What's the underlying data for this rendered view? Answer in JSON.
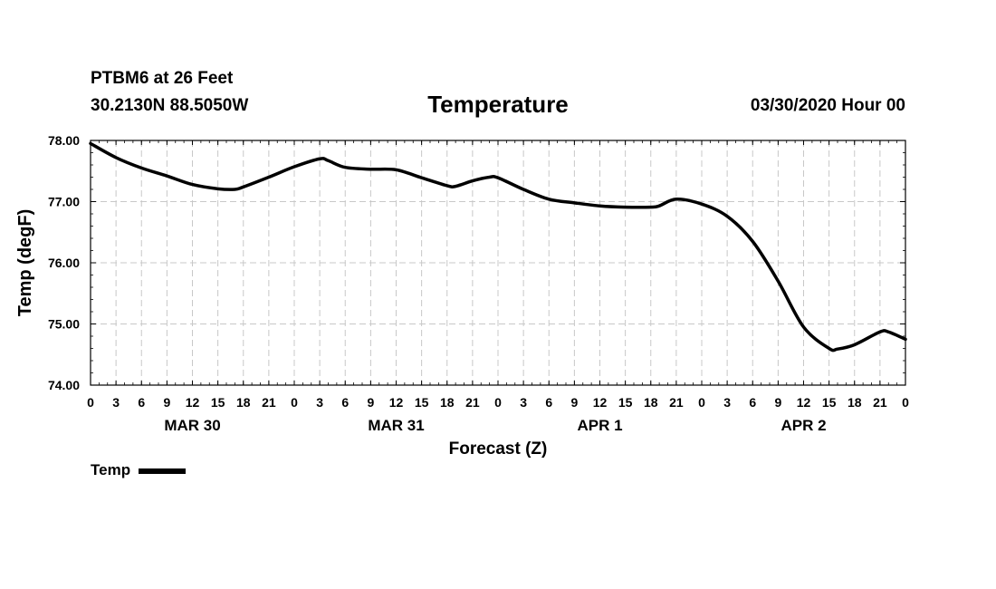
{
  "header": {
    "station": "PTBM6 at 26 Feet",
    "coordinates": "30.2130N 88.5050W",
    "title": "Temperature",
    "run_time": "03/30/2020 Hour 00"
  },
  "chart_data": {
    "type": "line",
    "title": "Temperature",
    "xlabel": "Forecast (Z)",
    "ylabel": "Temp (degF)",
    "ylim": [
      74,
      78
    ],
    "xlim": [
      0,
      96
    ],
    "x_unit": "forecast hours from 03/30/2020 00Z",
    "grid": true,
    "y_ticks": [
      "74.00",
      "75.00",
      "76.00",
      "77.00",
      "78.00"
    ],
    "y_tick_values": [
      74,
      75,
      76,
      77,
      78
    ],
    "x_tick_labels": [
      "0",
      "3",
      "6",
      "9",
      "12",
      "15",
      "18",
      "21",
      "0",
      "3",
      "6",
      "9",
      "12",
      "15",
      "18",
      "21",
      "0",
      "3",
      "6",
      "9",
      "12",
      "15",
      "18",
      "21",
      "0",
      "3",
      "6",
      "9",
      "12",
      "15",
      "18",
      "21",
      "0"
    ],
    "day_labels": [
      {
        "label": "MAR 30",
        "center_hour": 12
      },
      {
        "label": "MAR 31",
        "center_hour": 36
      },
      {
        "label": "APR 1",
        "center_hour": 60
      },
      {
        "label": "APR 2",
        "center_hour": 84
      }
    ],
    "series": [
      {
        "name": "Temp",
        "color": "#000000",
        "x": [
          0,
          3,
          6,
          9,
          12,
          15,
          17,
          18,
          21,
          24,
          27,
          28,
          30,
          33,
          36,
          39,
          42,
          43,
          45,
          47,
          48,
          51,
          54,
          57,
          60,
          63,
          66,
          67,
          69,
          72,
          75,
          78,
          81,
          84,
          87,
          88,
          90,
          93,
          94,
          96
        ],
        "values": [
          77.95,
          77.72,
          77.55,
          77.42,
          77.28,
          77.21,
          77.2,
          77.24,
          77.4,
          77.57,
          77.7,
          77.67,
          77.56,
          77.53,
          77.52,
          77.39,
          77.26,
          77.25,
          77.34,
          77.4,
          77.39,
          77.2,
          77.04,
          76.98,
          76.93,
          76.91,
          76.91,
          76.93,
          77.04,
          76.96,
          76.76,
          76.35,
          75.7,
          74.95,
          74.6,
          74.59,
          74.66,
          74.87,
          74.87,
          74.75
        ]
      }
    ],
    "legend": {
      "label": "Temp",
      "position": "bottom-left"
    }
  }
}
